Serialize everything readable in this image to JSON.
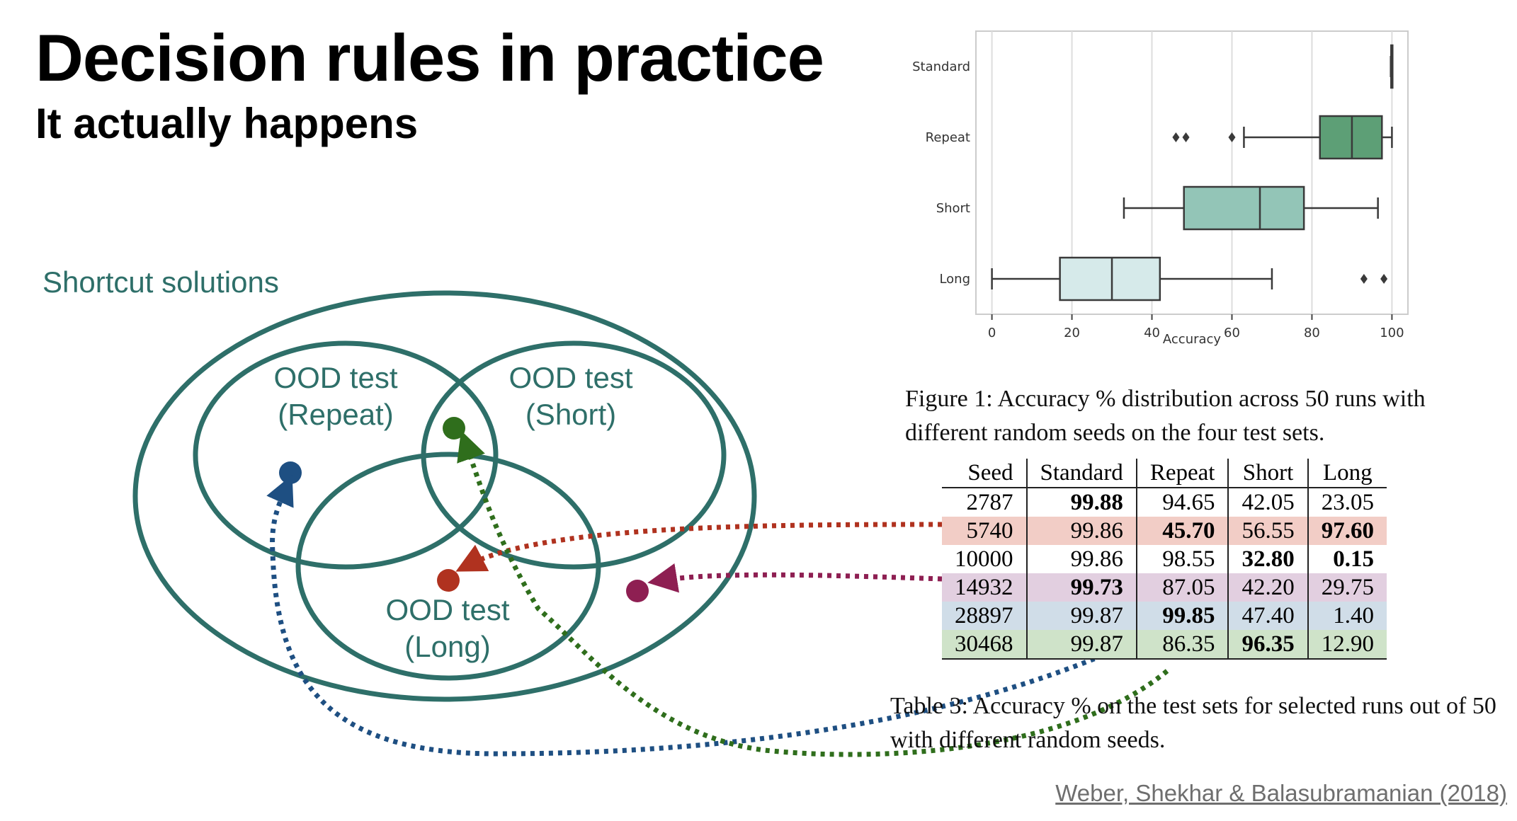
{
  "title": "Decision rules in practice",
  "subtitle": "It actually happens",
  "diagram": {
    "outer_label": "Shortcut solutions",
    "sets": [
      {
        "line1": "OOD test",
        "line2": "(Repeat)"
      },
      {
        "line1": "OOD test",
        "line2": "(Short)"
      },
      {
        "line1": "OOD test",
        "line2": "(Long)"
      }
    ]
  },
  "chart_data": {
    "type": "box",
    "categories": [
      "Standard",
      "Repeat",
      "Short",
      "Long"
    ],
    "xlabel": "Accuracy",
    "ylabel": "",
    "xlim": [
      -4,
      104
    ],
    "xticks": [
      0,
      20,
      40,
      60,
      80,
      100
    ],
    "grid": true,
    "series": [
      {
        "category": "Standard",
        "min": 99.7,
        "q1": 99.8,
        "median": 99.86,
        "q3": 99.9,
        "max": 100,
        "outliers": [],
        "color": "#5d9f76"
      },
      {
        "category": "Repeat",
        "min": 63,
        "q1": 82,
        "median": 90,
        "q3": 97.5,
        "max": 100,
        "outliers": [
          46,
          48.5,
          60
        ],
        "color": "#5d9f76"
      },
      {
        "category": "Short",
        "min": 33,
        "q1": 48,
        "median": 67,
        "q3": 78,
        "max": 96.5,
        "outliers": [],
        "color": "#93c5b7"
      },
      {
        "category": "Long",
        "min": 0,
        "q1": 17,
        "median": 30,
        "q3": 42,
        "max": 70,
        "outliers": [
          93,
          98
        ],
        "color": "#d6eaea"
      }
    ]
  },
  "figure_caption": "Figure 1:  Accuracy % distribution across 50 runs with different random seeds on the four test sets.",
  "table": {
    "headers": [
      "Seed",
      "Standard",
      "Repeat",
      "Short",
      "Long"
    ],
    "rows": [
      {
        "cells": [
          "2787",
          "99.88",
          "94.65",
          "42.05",
          "23.05"
        ],
        "bold": [
          false,
          true,
          false,
          false,
          false
        ],
        "highlight": null
      },
      {
        "cells": [
          "5740",
          "99.86",
          "45.70",
          "56.55",
          "97.60"
        ],
        "bold": [
          false,
          false,
          true,
          false,
          true
        ],
        "highlight": "#f2cdc6"
      },
      {
        "cells": [
          "10000",
          "99.86",
          "98.55",
          "32.80",
          "0.15"
        ],
        "bold": [
          false,
          false,
          false,
          true,
          true
        ],
        "highlight": null
      },
      {
        "cells": [
          "14932",
          "99.73",
          "87.05",
          "42.20",
          "29.75"
        ],
        "bold": [
          false,
          true,
          false,
          false,
          false
        ],
        "highlight": "#e2cfe0"
      },
      {
        "cells": [
          "28897",
          "99.87",
          "99.85",
          "47.40",
          "1.40"
        ],
        "bold": [
          false,
          false,
          true,
          false,
          false
        ],
        "highlight": "#d0dde8"
      },
      {
        "cells": [
          "30468",
          "99.87",
          "86.35",
          "96.35",
          "12.90"
        ],
        "bold": [
          false,
          false,
          false,
          true,
          false
        ],
        "highlight": "#cfe3c9"
      }
    ]
  },
  "table_caption": "Table 3:  Accuracy % on the test sets for selected runs out of 50 with different random seeds.",
  "citation": "Weber, Shekhar & Balasubramanian (2018)",
  "colors": {
    "teal": "#2e6f69",
    "dot_blue": "#1e4f82",
    "dot_green": "#2f6e1c",
    "dot_red": "#b0321f",
    "dot_purple": "#8e1f52"
  }
}
